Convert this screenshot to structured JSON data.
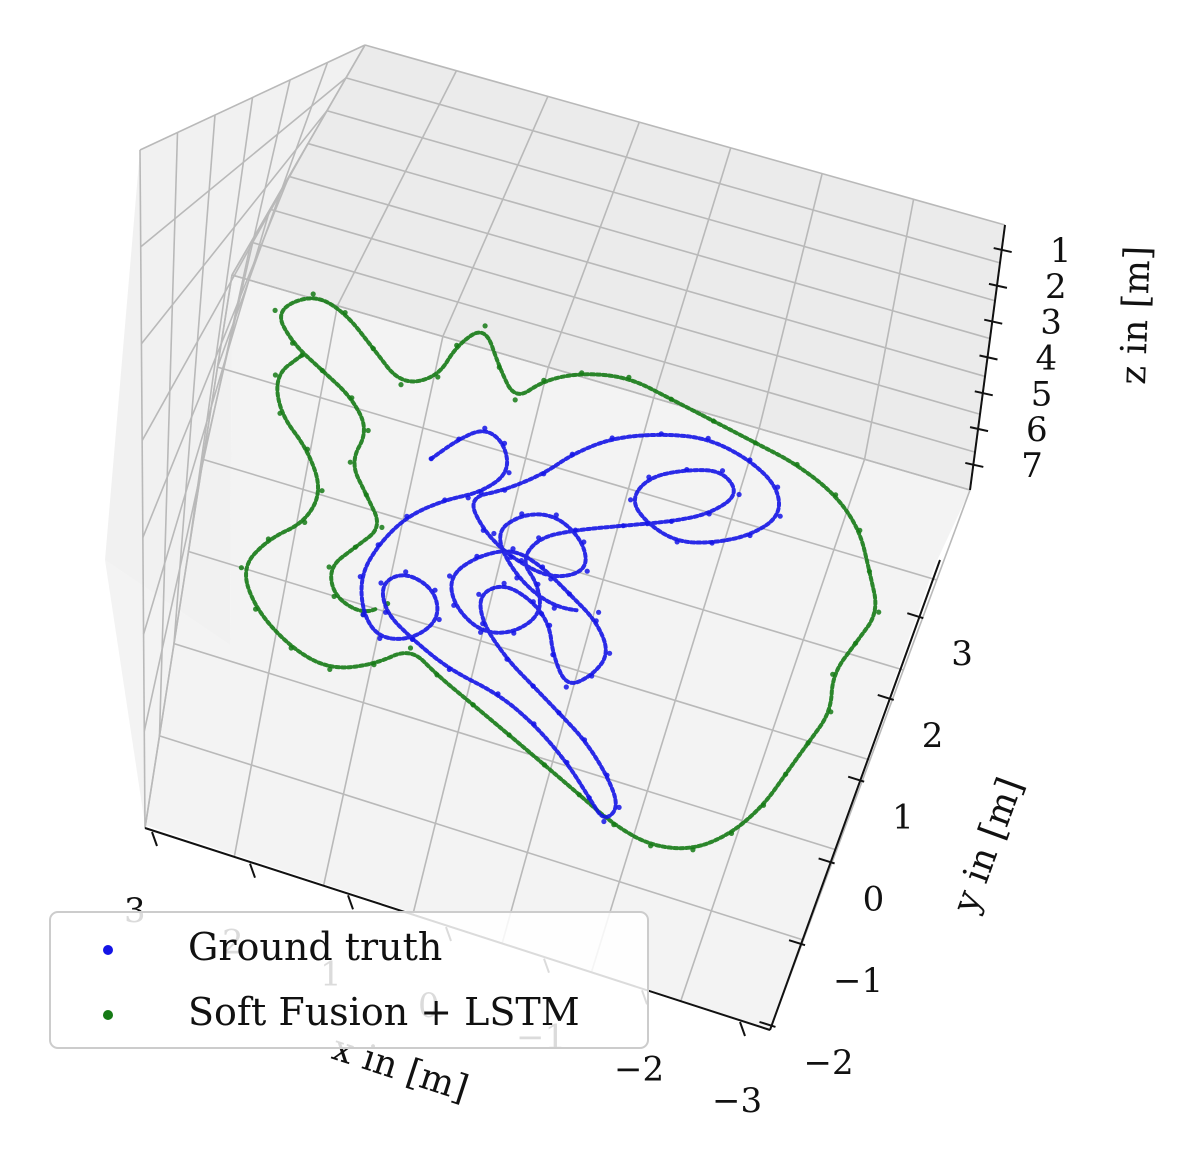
{
  "chart_data": {
    "type": "scatter",
    "projection": "3d",
    "xlabel": "x in [m]",
    "ylabel": "y in [m]",
    "zlabel": "z in [m]",
    "x_ticks": [
      "3",
      "2",
      "1",
      "0",
      "−1",
      "−2",
      "−3"
    ],
    "y_ticks": [
      "−2",
      "−1",
      "0",
      "1",
      "2",
      "3"
    ],
    "z_ticks": [
      "1",
      "2",
      "3",
      "4",
      "5",
      "6",
      "7"
    ],
    "grid": true,
    "legend_position": "lower-left",
    "series": [
      {
        "name": "Ground truth",
        "color": "#1414e6",
        "points": [
          [
            -0.9,
            2.3
          ],
          [
            -0.7,
            2.6
          ],
          [
            -0.5,
            2.8
          ],
          [
            -0.3,
            2.7
          ],
          [
            -0.2,
            2.4
          ],
          [
            -0.4,
            2.1
          ],
          [
            -0.7,
            1.9
          ],
          [
            -1.0,
            1.6
          ],
          [
            -1.2,
            1.2
          ],
          [
            -1.3,
            0.8
          ],
          [
            -1.2,
            0.4
          ],
          [
            -1.0,
            0.2
          ],
          [
            -0.7,
            0.3
          ],
          [
            -0.5,
            0.6
          ],
          [
            -0.6,
            0.9
          ],
          [
            -0.9,
            1.0
          ],
          [
            -1.1,
            0.8
          ],
          [
            -1.0,
            0.5
          ],
          [
            -0.7,
            0.3
          ],
          [
            -0.3,
            0.1
          ],
          [
            0.2,
            0.0
          ],
          [
            0.6,
            -0.2
          ],
          [
            1.0,
            -0.5
          ],
          [
            1.3,
            -0.8
          ],
          [
            1.5,
            -1.0
          ],
          [
            1.6,
            -0.8
          ],
          [
            1.4,
            -0.5
          ],
          [
            1.1,
            -0.2
          ],
          [
            0.8,
            0.0
          ],
          [
            0.5,
            0.2
          ],
          [
            0.2,
            0.4
          ],
          [
            -0.1,
            0.7
          ],
          [
            -0.2,
            1.0
          ],
          [
            0.0,
            1.2
          ],
          [
            0.3,
            1.1
          ],
          [
            0.5,
            0.9
          ],
          [
            0.6,
            0.6
          ],
          [
            0.8,
            0.3
          ],
          [
            1.0,
            0.5
          ],
          [
            1.1,
            0.8
          ],
          [
            0.9,
            1.1
          ],
          [
            0.6,
            1.3
          ],
          [
            0.3,
            1.5
          ],
          [
            0.0,
            1.6
          ],
          [
            -0.3,
            1.4
          ],
          [
            -0.5,
            1.1
          ],
          [
            -0.4,
            0.8
          ],
          [
            -0.1,
            0.6
          ],
          [
            0.2,
            0.7
          ],
          [
            0.4,
            1.0
          ],
          [
            0.3,
            1.3
          ],
          [
            0.1,
            1.5
          ],
          [
            0.2,
            1.8
          ],
          [
            0.5,
            2.0
          ],
          [
            0.9,
            2.2
          ],
          [
            1.3,
            2.4
          ],
          [
            1.6,
            2.6
          ],
          [
            1.8,
            2.9
          ],
          [
            1.6,
            3.1
          ],
          [
            1.3,
            3.0
          ],
          [
            1.0,
            2.8
          ],
          [
            0.9,
            2.5
          ],
          [
            1.1,
            2.3
          ],
          [
            1.4,
            2.2
          ],
          [
            1.7,
            2.3
          ],
          [
            2.0,
            2.5
          ],
          [
            2.2,
            2.8
          ],
          [
            2.1,
            3.1
          ],
          [
            1.8,
            3.3
          ],
          [
            1.4,
            3.4
          ],
          [
            1.0,
            3.3
          ],
          [
            0.6,
            3.1
          ],
          [
            0.3,
            2.8
          ],
          [
            0.1,
            2.5
          ],
          [
            -0.2,
            2.2
          ],
          [
            -0.5,
            2.0
          ],
          [
            -0.3,
            1.7
          ],
          [
            0.0,
            1.5
          ],
          [
            0.4,
            1.4
          ],
          [
            0.7,
            1.6
          ],
          [
            0.6,
            1.9
          ],
          [
            0.3,
            2.1
          ],
          [
            0.0,
            2.0
          ],
          [
            -0.2,
            1.7
          ],
          [
            0.1,
            1.3
          ],
          [
            0.5,
            1.1
          ],
          [
            0.9,
            1.2
          ]
        ]
      },
      {
        "name": "Soft Fusion + LSTM",
        "color": "#157a15",
        "points": [
          [
            -2.2,
            3.0
          ],
          [
            -2.4,
            2.7
          ],
          [
            -2.3,
            2.3
          ],
          [
            -2.0,
            2.0
          ],
          [
            -1.8,
            1.6
          ],
          [
            -1.9,
            1.2
          ],
          [
            -2.2,
            0.9
          ],
          [
            -2.4,
            0.5
          ],
          [
            -2.2,
            0.1
          ],
          [
            -1.8,
            -0.2
          ],
          [
            -1.4,
            -0.3
          ],
          [
            -1.0,
            -0.1
          ],
          [
            -0.7,
            0.2
          ],
          [
            -0.4,
            0.0
          ],
          [
            0.0,
            -0.2
          ],
          [
            0.4,
            -0.4
          ],
          [
            0.8,
            -0.6
          ],
          [
            1.2,
            -0.8
          ],
          [
            1.6,
            -1.0
          ],
          [
            2.0,
            -1.1
          ],
          [
            2.4,
            -1.0
          ],
          [
            2.7,
            -0.7
          ],
          [
            2.9,
            -0.3
          ],
          [
            3.0,
            0.1
          ],
          [
            3.1,
            0.5
          ],
          [
            3.2,
            0.9
          ],
          [
            3.1,
            1.3
          ],
          [
            3.2,
            1.7
          ],
          [
            3.3,
            2.1
          ],
          [
            3.1,
            2.5
          ],
          [
            2.9,
            2.9
          ],
          [
            2.6,
            3.2
          ],
          [
            2.2,
            3.4
          ],
          [
            1.8,
            3.5
          ],
          [
            1.4,
            3.6
          ],
          [
            1.0,
            3.7
          ],
          [
            0.6,
            3.8
          ],
          [
            0.2,
            3.7
          ],
          [
            -0.1,
            3.5
          ],
          [
            -0.3,
            3.2
          ],
          [
            -0.5,
            3.5
          ],
          [
            -0.7,
            3.9
          ],
          [
            -0.9,
            3.6
          ],
          [
            -1.0,
            3.2
          ],
          [
            -1.3,
            3.0
          ],
          [
            -1.6,
            3.3
          ],
          [
            -1.9,
            3.6
          ],
          [
            -2.2,
            3.7
          ],
          [
            -2.5,
            3.4
          ],
          [
            -2.3,
            3.1
          ],
          [
            -2.0,
            2.9
          ],
          [
            -1.7,
            2.7
          ],
          [
            -1.5,
            2.4
          ],
          [
            -1.6,
            2.0
          ],
          [
            -1.4,
            1.7
          ],
          [
            -1.2,
            1.4
          ],
          [
            -1.4,
            1.1
          ],
          [
            -1.6,
            0.8
          ],
          [
            -1.5,
            0.5
          ],
          [
            -1.2,
            0.4
          ],
          [
            -1.0,
            0.6
          ]
        ]
      }
    ]
  }
}
